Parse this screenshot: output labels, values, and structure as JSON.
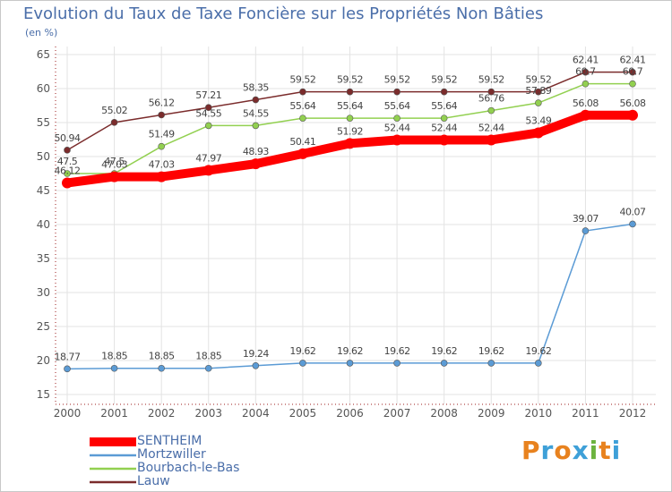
{
  "chart_data": {
    "type": "line",
    "title": "Evolution du Taux de Taxe Foncière sur les Propriétés Non Bâties",
    "subtitle": "(en %)",
    "x": [
      "2000",
      "2001",
      "2002",
      "2003",
      "2004",
      "2005",
      "2006",
      "2007",
      "2008",
      "2009",
      "2010",
      "2011",
      "2012"
    ],
    "ylim": [
      15,
      65
    ],
    "yticks": [
      15,
      20,
      25,
      30,
      35,
      40,
      45,
      50,
      55,
      60,
      65
    ],
    "grid": true,
    "legend_position": "bottom-left",
    "series": [
      {
        "name": "SENTHEIM",
        "color": "#ff0000",
        "values": [
          46.12,
          47.03,
          47.03,
          47.97,
          48.93,
          50.41,
          51.92,
          52.44,
          52.44,
          52.44,
          53.49,
          56.08,
          56.08
        ],
        "labels": [
          "46.12",
          "47.03",
          "47.03",
          "47.97",
          "48.93",
          "50.41",
          "51.92",
          "52.44",
          "52.44",
          "52.44",
          "53.49",
          "56.08",
          "56.08"
        ]
      },
      {
        "name": "Mortzwiller",
        "color": "#5b9bd5",
        "values": [
          18.77,
          18.85,
          18.85,
          18.85,
          19.24,
          19.62,
          19.62,
          19.62,
          19.62,
          19.62,
          19.62,
          39.07,
          40.07
        ],
        "labels": [
          "18.77",
          "18.85",
          "18.85",
          "18.85",
          "19.24",
          "19.62",
          "19.62",
          "19.62",
          "19.62",
          "19.62",
          "19.62",
          "39.07",
          "40.07"
        ]
      },
      {
        "name": "Bourbach-le-Bas",
        "color": "#92d050",
        "values": [
          47.5,
          47.5,
          51.49,
          54.55,
          54.55,
          55.64,
          55.64,
          55.64,
          55.64,
          56.76,
          57.89,
          60.7,
          60.7
        ],
        "labels": [
          "47.5",
          "47.5",
          "51.49",
          "54.55",
          "54.55",
          "55.64",
          "55.64",
          "55.64",
          "55.64",
          "56.76",
          "57.89",
          "60.7",
          "60.7"
        ]
      },
      {
        "name": "Lauw",
        "color": "#7b2c2c",
        "values": [
          50.94,
          55.02,
          56.12,
          57.21,
          58.35,
          59.52,
          59.52,
          59.52,
          59.52,
          59.52,
          59.52,
          62.41,
          62.41
        ],
        "labels": [
          "50.94",
          "55.02",
          "56.12",
          "57.21",
          "58.35",
          "59.52",
          "59.52",
          "59.52",
          "59.52",
          "59.52",
          "59.52",
          "62.41",
          "62.41"
        ]
      }
    ]
  },
  "logo": {
    "text": "Proxiti",
    "colors": [
      "#e8821e",
      "#3ea0d8",
      "#e8821e",
      "#3ea0d8",
      "#6cb33e",
      "#e8821e",
      "#3ea0d8"
    ]
  }
}
